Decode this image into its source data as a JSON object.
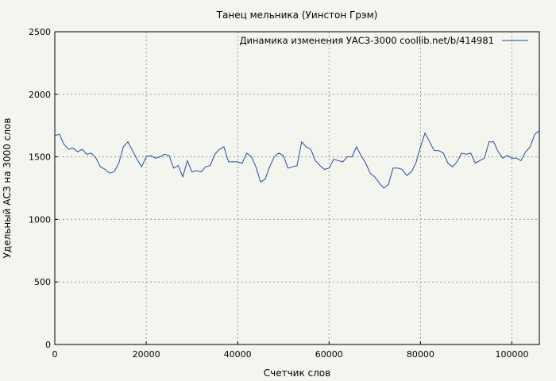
{
  "chart_data": {
    "type": "line",
    "title": "Танец мельника (Уинстон Грэм)",
    "xlabel": "Счетчик слов",
    "ylabel": "Удельный АСЗ на 3000 слов",
    "xlim": [
      0,
      106000
    ],
    "ylim": [
      0,
      2500
    ],
    "x_ticks": [
      0,
      20000,
      40000,
      60000,
      80000,
      100000
    ],
    "y_ticks": [
      0,
      500,
      1000,
      1500,
      2000,
      2500
    ],
    "grid": true,
    "legend_position": "top-right",
    "series": [
      {
        "name": "Динамика изменения УАСЗ-3000  coollib.net/b/414981",
        "color": "#1f4e9e",
        "x": [
          0,
          1000,
          2000,
          3000,
          4000,
          5000,
          6000,
          7000,
          8000,
          9000,
          10000,
          11000,
          12000,
          13000,
          14000,
          15000,
          16000,
          17000,
          18000,
          19000,
          20000,
          21000,
          22000,
          23000,
          24000,
          25000,
          26000,
          27000,
          28000,
          29000,
          30000,
          31000,
          32000,
          33000,
          34000,
          35000,
          36000,
          37000,
          38000,
          39000,
          40000,
          41000,
          42000,
          43000,
          44000,
          45000,
          46000,
          47000,
          48000,
          49000,
          50000,
          51000,
          52000,
          53000,
          54000,
          55000,
          56000,
          57000,
          58000,
          59000,
          60000,
          61000,
          62000,
          63000,
          64000,
          65000,
          66000,
          67000,
          68000,
          69000,
          70000,
          71000,
          72000,
          73000,
          74000,
          75000,
          76000,
          77000,
          78000,
          79000,
          80000,
          81000,
          82000,
          83000,
          84000,
          85000,
          86000,
          87000,
          88000,
          89000,
          90000,
          91000,
          92000,
          93000,
          94000,
          95000,
          96000,
          97000,
          98000,
          99000,
          100000,
          101000,
          102000,
          103000,
          104000,
          105000,
          106000
        ],
        "values": [
          1670,
          1680,
          1600,
          1560,
          1570,
          1540,
          1560,
          1520,
          1530,
          1490,
          1420,
          1400,
          1370,
          1380,
          1450,
          1580,
          1620,
          1550,
          1480,
          1420,
          1500,
          1510,
          1490,
          1500,
          1520,
          1510,
          1410,
          1430,
          1340,
          1470,
          1380,
          1390,
          1380,
          1420,
          1430,
          1520,
          1560,
          1580,
          1460,
          1460,
          1460,
          1450,
          1530,
          1500,
          1420,
          1300,
          1320,
          1420,
          1500,
          1530,
          1510,
          1410,
          1420,
          1430,
          1620,
          1580,
          1560,
          1470,
          1430,
          1400,
          1410,
          1480,
          1470,
          1460,
          1500,
          1500,
          1580,
          1510,
          1450,
          1370,
          1340,
          1290,
          1250,
          1280,
          1410,
          1410,
          1400,
          1350,
          1380,
          1450,
          1580,
          1690,
          1620,
          1550,
          1550,
          1530,
          1450,
          1420,
          1460,
          1530,
          1520,
          1530,
          1450,
          1470,
          1490,
          1620,
          1620,
          1540,
          1490,
          1510,
          1490,
          1490,
          1470,
          1540,
          1580,
          1680,
          1710
        ]
      }
    ]
  }
}
